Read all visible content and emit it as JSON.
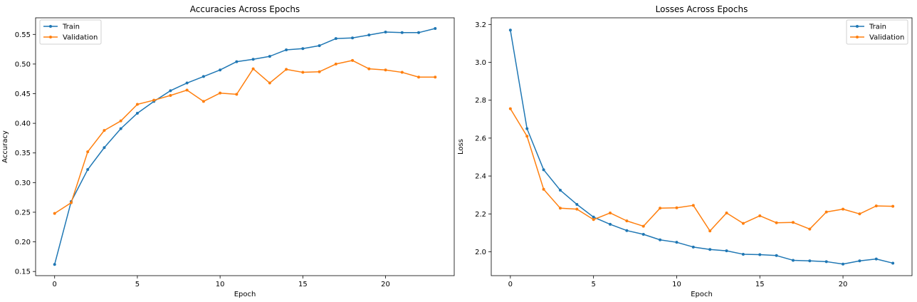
{
  "colors": {
    "train": "#1f77b4",
    "validation": "#ff7f0e",
    "axis": "#000000",
    "background": "#ffffff"
  },
  "chart_data": [
    {
      "type": "line",
      "title": "Accuracies Across Epochs",
      "xlabel": "Epoch",
      "ylabel": "Accuracy",
      "xlim": [
        -1.15,
        24.15
      ],
      "ylim": [
        0.143,
        0.578
      ],
      "xticks": [
        0,
        5,
        10,
        15,
        20
      ],
      "yticks": [
        0.15,
        0.2,
        0.25,
        0.3,
        0.35,
        0.4,
        0.45,
        0.5,
        0.55
      ],
      "ytick_labels": [
        "0.15",
        "0.20",
        "0.25",
        "0.30",
        "0.35",
        "0.40",
        "0.45",
        "0.50",
        "0.55"
      ],
      "grid": false,
      "legend_position": "top-left",
      "x": [
        0,
        1,
        2,
        3,
        4,
        5,
        6,
        7,
        8,
        9,
        10,
        11,
        12,
        13,
        14,
        15,
        16,
        17,
        18,
        19,
        20,
        21,
        22,
        23
      ],
      "series": [
        {
          "name": "Train",
          "color_key": "train",
          "marker": "dot",
          "values": [
            0.162,
            0.268,
            0.322,
            0.359,
            0.391,
            0.417,
            0.437,
            0.455,
            0.468,
            0.479,
            0.49,
            0.504,
            0.508,
            0.513,
            0.524,
            0.526,
            0.531,
            0.543,
            0.544,
            0.549,
            0.554,
            0.553,
            0.553,
            0.56
          ]
        },
        {
          "name": "Validation",
          "color_key": "validation",
          "marker": "dot",
          "values": [
            0.248,
            0.266,
            0.352,
            0.388,
            0.404,
            0.432,
            0.439,
            0.447,
            0.456,
            0.437,
            0.451,
            0.449,
            0.492,
            0.468,
            0.491,
            0.486,
            0.487,
            0.5,
            0.506,
            0.492,
            0.49,
            0.486,
            0.478,
            0.478
          ]
        }
      ]
    },
    {
      "type": "line",
      "title": "Losses Across Epochs",
      "xlabel": "Epoch",
      "ylabel": "Loss",
      "xlim": [
        -1.15,
        24.15
      ],
      "ylim": [
        1.874,
        3.235
      ],
      "xticks": [
        0,
        5,
        10,
        15,
        20
      ],
      "yticks": [
        2.0,
        2.2,
        2.4,
        2.6,
        2.8,
        3.0,
        3.2
      ],
      "ytick_labels": [
        "2.0",
        "2.2",
        "2.4",
        "2.6",
        "2.8",
        "3.0",
        "3.2"
      ],
      "grid": false,
      "legend_position": "top-right",
      "x": [
        0,
        1,
        2,
        3,
        4,
        5,
        6,
        7,
        8,
        9,
        10,
        11,
        12,
        13,
        14,
        15,
        16,
        17,
        18,
        19,
        20,
        21,
        22,
        23
      ],
      "series": [
        {
          "name": "Train",
          "color_key": "train",
          "marker": "dot",
          "values": [
            3.17,
            2.65,
            2.433,
            2.325,
            2.25,
            2.183,
            2.145,
            2.112,
            2.092,
            2.063,
            2.05,
            2.025,
            2.012,
            2.005,
            1.987,
            1.985,
            1.98,
            1.955,
            1.952,
            1.948,
            1.935,
            1.952,
            1.962,
            1.94
          ]
        },
        {
          "name": "Validation",
          "color_key": "validation",
          "marker": "dot",
          "values": [
            2.755,
            2.61,
            2.33,
            2.23,
            2.225,
            2.17,
            2.205,
            2.163,
            2.135,
            2.23,
            2.232,
            2.245,
            2.11,
            2.205,
            2.15,
            2.19,
            2.153,
            2.155,
            2.12,
            2.21,
            2.225,
            2.2,
            2.242,
            2.24
          ]
        }
      ]
    }
  ]
}
